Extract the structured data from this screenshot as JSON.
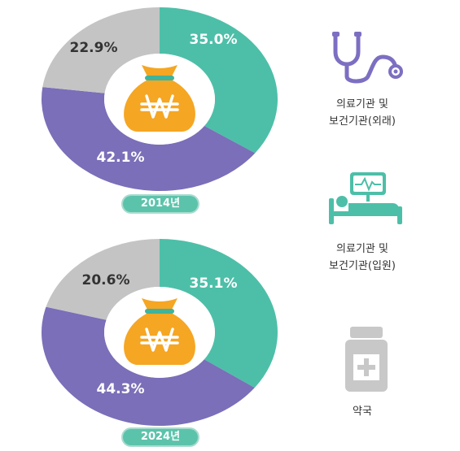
{
  "colors": {
    "green": "#4dbfa8",
    "purple": "#7a6fb8",
    "gray": "#c4c4c4",
    "bag_orange": "#f5a623",
    "bag_band": "#3fb39b",
    "pill_green": "#5cc3ab",
    "pill_outline": "#a8dccf",
    "icon_purple": "#7c6fc2",
    "icon_gray": "#c8c8c8"
  },
  "chart_data": [
    {
      "type": "pie",
      "pill_label": "2014년",
      "series": [
        {
          "label": "35.0%",
          "value": 35.0,
          "color": "#4dbfa8"
        },
        {
          "label": "42.1%",
          "value": 42.1,
          "color": "#7a6fb8"
        },
        {
          "label": "22.9%",
          "value": 22.9,
          "color": "#c4c4c4"
        }
      ],
      "center_icon": "won-money-bag-icon"
    },
    {
      "type": "pie",
      "pill_label": "2024년",
      "series": [
        {
          "label": "35.1%",
          "value": 35.1,
          "color": "#4dbfa8"
        },
        {
          "label": "44.3%",
          "value": 44.3,
          "color": "#7a6fb8"
        },
        {
          "label": "20.6%",
          "value": 20.6,
          "color": "#c4c4c4"
        }
      ],
      "center_icon": "won-money-bag-icon"
    }
  ],
  "legend": {
    "outpatient": {
      "icon": "stethoscope-icon",
      "line1": "의료기관 및",
      "line2": "보건기관(외래)"
    },
    "inpatient": {
      "icon": "hospital-bed-icon",
      "line1": "의료기관 및",
      "line2": "보건기관(입원)"
    },
    "pharmacy": {
      "icon": "medicine-bottle-icon",
      "line1": "약국"
    }
  }
}
